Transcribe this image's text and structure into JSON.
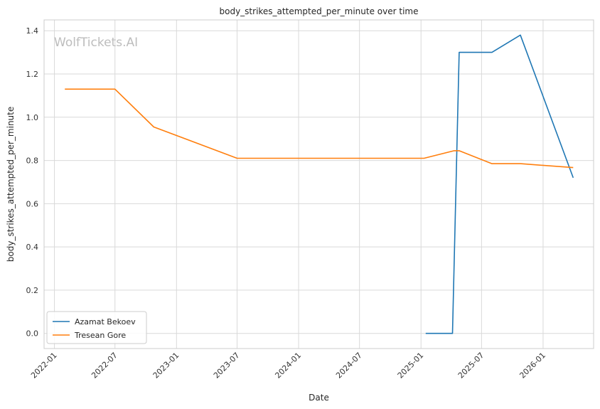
{
  "chart_data": {
    "type": "line",
    "title": "body_strikes_attempted_per_minute over time",
    "xlabel": "Date",
    "ylabel": "body_strikes_attempted_per_minute",
    "watermark": "WolfTickets.AI",
    "x_ticks": [
      "2022-01",
      "2022-07",
      "2023-01",
      "2023-07",
      "2024-01",
      "2024-07",
      "2025-01",
      "2025-07",
      "2026-01"
    ],
    "y_ticks": [
      "0.0",
      "0.2",
      "0.4",
      "0.6",
      "0.8",
      "1.0",
      "1.2",
      "1.4"
    ],
    "xlim": [
      "2021-12-01",
      "2026-06-01"
    ],
    "ylim": [
      -0.07,
      1.45
    ],
    "grid": true,
    "legend_position": "lower-left",
    "series": [
      {
        "name": "Azamat Bekoev",
        "color": "#1f77b4",
        "points": [
          {
            "x": "2025-01-15",
            "y": 0.0
          },
          {
            "x": "2025-04-05",
            "y": 0.0
          },
          {
            "x": "2025-04-25",
            "y": 1.3
          },
          {
            "x": "2025-08-01",
            "y": 1.3
          },
          {
            "x": "2025-10-25",
            "y": 1.38
          },
          {
            "x": "2026-04-01",
            "y": 0.72
          }
        ]
      },
      {
        "name": "Tresean Gore",
        "color": "#ff7f0e",
        "points": [
          {
            "x": "2022-02-01",
            "y": 1.13
          },
          {
            "x": "2022-07-01",
            "y": 1.13
          },
          {
            "x": "2022-10-25",
            "y": 0.955
          },
          {
            "x": "2023-07-01",
            "y": 0.81
          },
          {
            "x": "2025-01-10",
            "y": 0.81
          },
          {
            "x": "2025-04-10",
            "y": 0.845
          },
          {
            "x": "2025-04-25",
            "y": 0.845
          },
          {
            "x": "2025-08-01",
            "y": 0.785
          },
          {
            "x": "2025-10-25",
            "y": 0.785
          },
          {
            "x": "2026-04-01",
            "y": 0.767
          }
        ]
      }
    ]
  }
}
